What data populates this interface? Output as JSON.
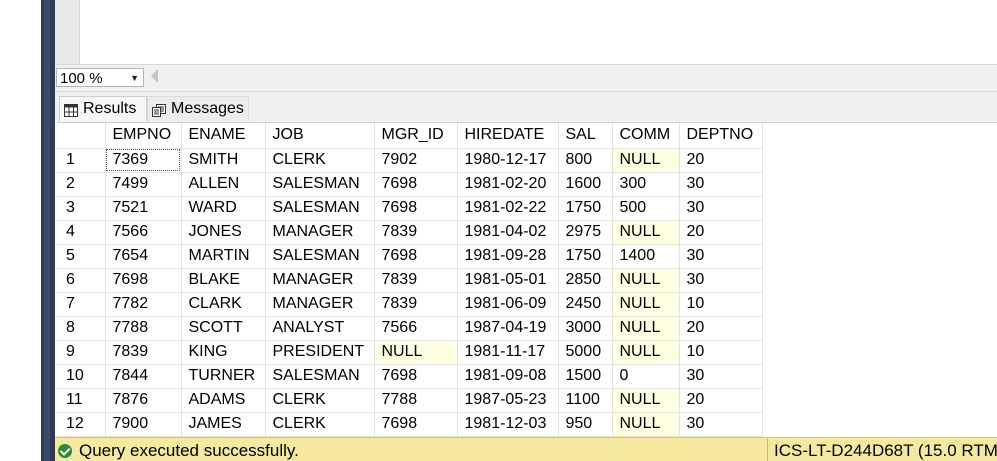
{
  "zoom": {
    "value": "100 %"
  },
  "tabs": {
    "results": "Results",
    "messages": "Messages"
  },
  "grid": {
    "columns": [
      "",
      "EMPNO",
      "ENAME",
      "JOB",
      "MGR_ID",
      "HIREDATE",
      "SAL",
      "COMM",
      "DEPTNO"
    ],
    "rows": [
      [
        "1",
        "7369",
        "SMITH",
        "CLERK",
        "7902",
        "1980-12-17",
        "800",
        "NULL",
        "20"
      ],
      [
        "2",
        "7499",
        "ALLEN",
        "SALESMAN",
        "7698",
        "1981-02-20",
        "1600",
        "300",
        "30"
      ],
      [
        "3",
        "7521",
        "WARD",
        "SALESMAN",
        "7698",
        "1981-02-22",
        "1750",
        "500",
        "30"
      ],
      [
        "4",
        "7566",
        "JONES",
        "MANAGER",
        "7839",
        "1981-04-02",
        "2975",
        "NULL",
        "20"
      ],
      [
        "5",
        "7654",
        "MARTIN",
        "SALESMAN",
        "7698",
        "1981-09-28",
        "1750",
        "1400",
        "30"
      ],
      [
        "6",
        "7698",
        "BLAKE",
        "MANAGER",
        "7839",
        "1981-05-01",
        "2850",
        "NULL",
        "30"
      ],
      [
        "7",
        "7782",
        "CLARK",
        "MANAGER",
        "7839",
        "1981-06-09",
        "2450",
        "NULL",
        "10"
      ],
      [
        "8",
        "7788",
        "SCOTT",
        "ANALYST",
        "7566",
        "1987-04-19",
        "3000",
        "NULL",
        "20"
      ],
      [
        "9",
        "7839",
        "KING",
        "PRESIDENT",
        "NULL",
        "1981-11-17",
        "5000",
        "NULL",
        "10"
      ],
      [
        "10",
        "7844",
        "TURNER",
        "SALESMAN",
        "7698",
        "1981-09-08",
        "1500",
        "0",
        "30"
      ],
      [
        "11",
        "7876",
        "ADAMS",
        "CLERK",
        "7788",
        "1987-05-23",
        "1100",
        "NULL",
        "20"
      ],
      [
        "12",
        "7900",
        "JAMES",
        "CLERK",
        "7698",
        "1981-12-03",
        "950",
        "NULL",
        "30"
      ]
    ]
  },
  "status": {
    "message": "Query executed successfully.",
    "server": "ICS-LT-D244D68T (15.0 RTM"
  },
  "colors": {
    "null_cell": "#ffffe1",
    "status_bar": "#f5e9a0",
    "success_icon": "#2e8b3a"
  },
  "icons": {
    "status": "success-check-icon",
    "results_tab": "grid-icon",
    "messages_tab": "messages-icon",
    "zoom_dropdown": "chevron-down-icon"
  }
}
